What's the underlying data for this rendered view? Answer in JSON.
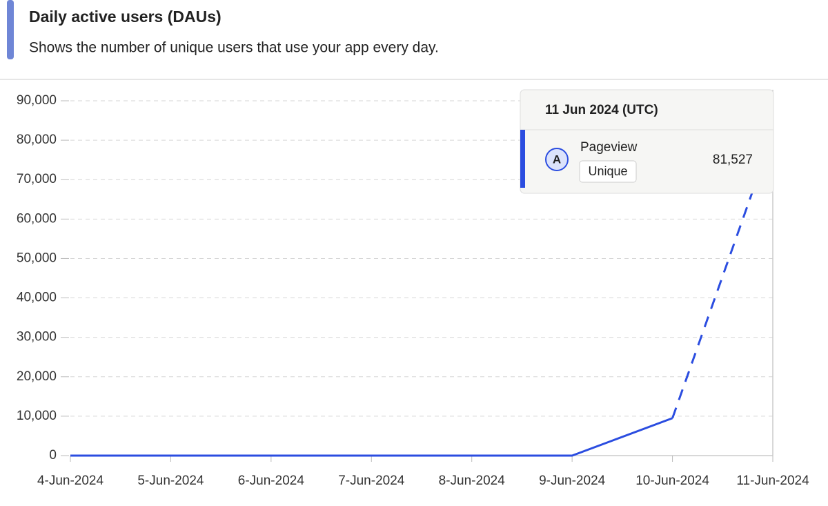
{
  "chart_data": {
    "type": "line",
    "title": "Daily active users (DAUs)",
    "subtitle": "Shows the number of unique users that use your app every day.",
    "categories": [
      "4-Jun-2024",
      "5-Jun-2024",
      "6-Jun-2024",
      "7-Jun-2024",
      "8-Jun-2024",
      "9-Jun-2024",
      "10-Jun-2024",
      "11-Jun-2024"
    ],
    "series": [
      {
        "name": "Pageview",
        "color": "#2b4de0",
        "values": [
          0,
          0,
          0,
          0,
          0,
          0,
          9500,
          81527
        ],
        "value_labels": [
          null,
          null,
          null,
          null,
          null,
          null,
          null,
          "81,527"
        ]
      }
    ],
    "incomplete_last_period": true,
    "ylim": [
      0,
      90000
    ],
    "yticks": [
      0,
      {
        "value": 10000,
        "label": "10,000"
      },
      {
        "value": 20000,
        "label": "20,000"
      },
      {
        "value": 30000,
        "label": "30,000"
      },
      {
        "value": 40000,
        "label": "40,000"
      },
      {
        "value": 50000,
        "label": "50,000"
      },
      {
        "value": 60000,
        "label": "60,000"
      },
      {
        "value": 70000,
        "label": "70,000"
      },
      {
        "value": 80000,
        "label": "80,000"
      },
      {
        "value": 90000,
        "label": "90,000"
      }
    ],
    "grid": true,
    "tooltip": {
      "title": "11 Jun 2024 (UTC)",
      "badge": "A",
      "measure": "Unique",
      "index": 7
    }
  }
}
